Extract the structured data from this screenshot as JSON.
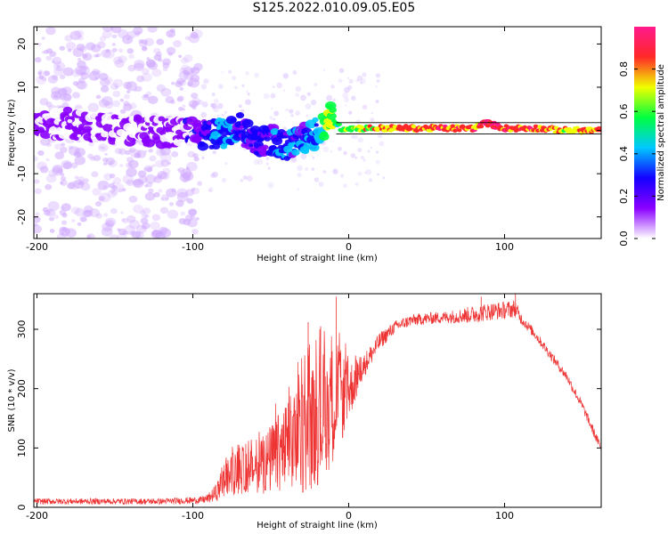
{
  "title": "S125.2022.010.09.05.E05",
  "chart_data": [
    {
      "type": "heatmap",
      "name": "spectrogram",
      "xlabel": "Height of straight line (km)",
      "ylabel": "Frequency (Hz)",
      "xlim": [
        -202,
        162
      ],
      "ylim": [
        -25,
        24
      ],
      "xticks": [
        -200,
        -100,
        0,
        100
      ],
      "yticks": [
        20,
        10,
        0,
        -10,
        -20
      ],
      "colorbar": {
        "label": "Normalized spectral amplitude",
        "range": [
          0.0,
          1.0
        ],
        "ticks": [
          0.0,
          0.2,
          0.4,
          0.6,
          0.8
        ],
        "colors": [
          "#ffffff",
          "#8a00ff",
          "#1400ff",
          "#00c8ff",
          "#00ff40",
          "#f0ff00",
          "#ff2828",
          "#ff1a8c"
        ]
      },
      "ridge": {
        "x": [
          -200,
          -180,
          -160,
          -140,
          -120,
          -100,
          -90,
          -80,
          -70,
          -60,
          -50,
          -40,
          -30,
          -20,
          -12,
          -5,
          0,
          20,
          40,
          60,
          80,
          88,
          100,
          120,
          140,
          162
        ],
        "freq": [
          1.5,
          1.5,
          0.5,
          0.0,
          -0.5,
          -0.5,
          -1.0,
          -0.5,
          1.0,
          -3.0,
          -2.0,
          -4.0,
          -2.0,
          -0.5,
          3.0,
          0.5,
          0.5,
          0.5,
          0.5,
          0.5,
          0.5,
          1.8,
          0.5,
          0.5,
          0.0,
          0.0
        ],
        "amp": [
          0.08,
          0.08,
          0.08,
          0.08,
          0.08,
          0.12,
          0.25,
          0.35,
          0.3,
          0.2,
          0.25,
          0.3,
          0.3,
          0.4,
          0.7,
          0.5,
          0.6,
          0.75,
          0.8,
          0.85,
          0.85,
          0.95,
          0.85,
          0.8,
          0.75,
          0.8
        ]
      }
    },
    {
      "type": "line",
      "name": "snr",
      "xlabel": "Height of straight line (km)",
      "ylabel": "SNR (10 * v/v)",
      "xlim": [
        -202,
        162
      ],
      "ylim": [
        0,
        360
      ],
      "xticks": [
        -200,
        -100,
        0,
        100
      ],
      "yticks": [
        0,
        100,
        200,
        300
      ],
      "color": "#ee3333",
      "envelope": {
        "x": [
          -202,
          -180,
          -150,
          -120,
          -95,
          -90,
          -85,
          -80,
          -75,
          -70,
          -60,
          -50,
          -40,
          -30,
          -20,
          -15,
          -10,
          -5,
          0,
          10,
          20,
          30,
          40,
          50,
          60,
          70,
          80,
          90,
          100,
          107,
          110,
          120,
          130,
          140,
          150,
          155,
          160,
          162
        ],
        "mean": [
          10,
          10,
          10,
          10,
          12,
          15,
          25,
          45,
          55,
          60,
          65,
          80,
          100,
          120,
          145,
          160,
          175,
          185,
          195,
          240,
          280,
          305,
          315,
          318,
          320,
          322,
          325,
          330,
          332,
          335,
          320,
          290,
          255,
          220,
          170,
          140,
          110,
          100
        ],
        "noise": [
          5,
          5,
          5,
          5,
          6,
          8,
          15,
          30,
          35,
          40,
          40,
          60,
          80,
          100,
          110,
          110,
          100,
          80,
          50,
          20,
          15,
          10,
          10,
          10,
          10,
          12,
          15,
          15,
          15,
          15,
          10,
          8,
          8,
          8,
          8,
          8,
          8,
          8
        ]
      },
      "spikes": [
        {
          "x": -26,
          "y": 312
        },
        {
          "x": -18,
          "y": 305
        },
        {
          "x": -8,
          "y": 355
        },
        {
          "x": 85,
          "y": 355
        },
        {
          "x": 107,
          "y": 362
        }
      ]
    }
  ]
}
